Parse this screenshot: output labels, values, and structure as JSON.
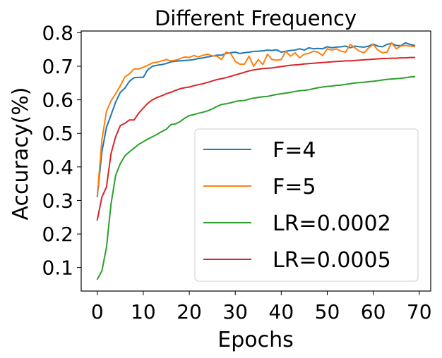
{
  "chart_data": {
    "type": "line",
    "title": "Different Frequency",
    "xlabel": "Epochs",
    "ylabel": "Accuracy(%)",
    "xlim": [
      -3.5,
      72.5
    ],
    "ylim": [
      0.03,
      0.805
    ],
    "xticks": [
      0,
      10,
      20,
      30,
      40,
      50,
      60,
      70
    ],
    "xtick_labels": [
      "0",
      "10",
      "20",
      "30",
      "40",
      "50",
      "60",
      "70"
    ],
    "yticks": [
      0.1,
      0.2,
      0.3,
      0.4,
      0.5,
      0.6,
      0.7,
      0.8
    ],
    "ytick_labels": [
      "0.1",
      "0.2",
      "0.3",
      "0.4",
      "0.5",
      "0.6",
      "0.7",
      "0.8"
    ],
    "grid": false,
    "legend_position": "lower-right",
    "series": [
      {
        "name": "F=4",
        "color": "#1f77b4",
        "values": [
          0.312,
          0.445,
          0.518,
          0.555,
          0.593,
          0.622,
          0.635,
          0.655,
          0.666,
          0.667,
          0.667,
          0.69,
          0.7,
          0.703,
          0.705,
          0.708,
          0.713,
          0.715,
          0.716,
          0.717,
          0.718,
          0.72,
          0.723,
          0.725,
          0.728,
          0.73,
          0.733,
          0.733,
          0.738,
          0.74,
          0.742,
          0.738,
          0.74,
          0.742,
          0.744,
          0.745,
          0.746,
          0.748,
          0.747,
          0.749,
          0.742,
          0.745,
          0.747,
          0.748,
          0.752,
          0.748,
          0.755,
          0.752,
          0.753,
          0.752,
          0.758,
          0.755,
          0.757,
          0.758,
          0.76,
          0.755,
          0.76,
          0.758,
          0.757,
          0.76,
          0.766,
          0.76,
          0.758,
          0.765,
          0.768,
          0.762,
          0.761,
          0.77,
          0.765,
          0.762
        ]
      },
      {
        "name": "F=5",
        "color": "#ff7f0e",
        "values": [
          0.315,
          0.48,
          0.566,
          0.597,
          0.618,
          0.642,
          0.668,
          0.678,
          0.692,
          0.692,
          0.697,
          0.703,
          0.71,
          0.712,
          0.716,
          0.72,
          0.716,
          0.718,
          0.722,
          0.728,
          0.726,
          0.732,
          0.728,
          0.733,
          0.736,
          0.731,
          0.73,
          0.72,
          0.742,
          0.738,
          0.715,
          0.706,
          0.706,
          0.73,
          0.7,
          0.72,
          0.705,
          0.736,
          0.72,
          0.718,
          0.72,
          0.745,
          0.73,
          0.74,
          0.725,
          0.736,
          0.738,
          0.745,
          0.742,
          0.732,
          0.752,
          0.748,
          0.752,
          0.745,
          0.742,
          0.765,
          0.755,
          0.745,
          0.74,
          0.755,
          0.765,
          0.748,
          0.74,
          0.742,
          0.77,
          0.752,
          0.76,
          0.762,
          0.76,
          0.758
        ]
      },
      {
        "name": "LR=0.0002",
        "color": "#2ca02c",
        "values": [
          0.065,
          0.09,
          0.16,
          0.29,
          0.375,
          0.41,
          0.433,
          0.445,
          0.456,
          0.467,
          0.475,
          0.483,
          0.49,
          0.497,
          0.505,
          0.512,
          0.526,
          0.528,
          0.535,
          0.545,
          0.553,
          0.556,
          0.56,
          0.563,
          0.567,
          0.573,
          0.58,
          0.586,
          0.588,
          0.591,
          0.595,
          0.597,
          0.598,
          0.602,
          0.605,
          0.607,
          0.609,
          0.61,
          0.613,
          0.616,
          0.618,
          0.62,
          0.622,
          0.625,
          0.627,
          0.628,
          0.63,
          0.633,
          0.636,
          0.638,
          0.64,
          0.641,
          0.643,
          0.644,
          0.646,
          0.648,
          0.65,
          0.651,
          0.652,
          0.654,
          0.655,
          0.657,
          0.659,
          0.661,
          0.662,
          0.663,
          0.664,
          0.666,
          0.668,
          0.669
        ]
      },
      {
        "name": "LR=0.0005",
        "color": "#d62728",
        "values": [
          0.242,
          0.31,
          0.34,
          0.44,
          0.49,
          0.523,
          0.53,
          0.54,
          0.54,
          0.56,
          0.575,
          0.59,
          0.6,
          0.607,
          0.612,
          0.618,
          0.622,
          0.628,
          0.633,
          0.636,
          0.638,
          0.642,
          0.645,
          0.648,
          0.652,
          0.656,
          0.66,
          0.663,
          0.666,
          0.67,
          0.674,
          0.678,
          0.682,
          0.686,
          0.689,
          0.691,
          0.693,
          0.694,
          0.695,
          0.697,
          0.699,
          0.701,
          0.703,
          0.704,
          0.705,
          0.707,
          0.708,
          0.709,
          0.71,
          0.711,
          0.712,
          0.713,
          0.714,
          0.715,
          0.716,
          0.716,
          0.717,
          0.718,
          0.719,
          0.72,
          0.721,
          0.722,
          0.723,
          0.723,
          0.724,
          0.724,
          0.725,
          0.725,
          0.726,
          0.726
        ]
      }
    ]
  }
}
